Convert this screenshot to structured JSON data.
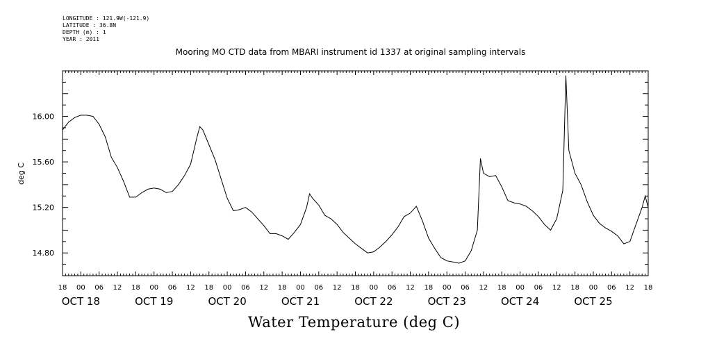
{
  "metadata": {
    "longitude": "LONGITUDE : 121.9W(-121.9)",
    "latitude": "LATITUDE : 36.8N",
    "depth": "DEPTH (m) : 1",
    "year": "YEAR : 2011"
  },
  "chart_data": {
    "type": "line",
    "title": "Mooring MO CTD data from MBARI instrument id 1337 at original sampling intervals",
    "xlabel": "Water Temperature (deg C)",
    "ylabel": "deg C",
    "xlim": [
      "OCT 17 18:00",
      "OCT 25 18:00"
    ],
    "ylim": [
      14.6,
      16.4
    ],
    "y_ticks": [
      "14.80",
      "15.20",
      "15.60",
      "16.00"
    ],
    "x_hour_ticks": [
      "18",
      "00",
      "06",
      "12",
      "18",
      "00",
      "06",
      "12",
      "18",
      "00",
      "06",
      "12",
      "18",
      "00",
      "06",
      "12",
      "18",
      "00",
      "06",
      "12",
      "18",
      "00",
      "06",
      "12",
      "18",
      "00",
      "06",
      "12",
      "18",
      "00",
      "06",
      "12",
      "18"
    ],
    "x_day_labels": [
      {
        "label": "OCT 18",
        "x": "OCT 18 00:00"
      },
      {
        "label": "OCT 19",
        "x": "OCT 19 00:00"
      },
      {
        "label": "OCT 20",
        "x": "OCT 20 00:00"
      },
      {
        "label": "OCT 21",
        "x": "OCT 21 00:00"
      },
      {
        "label": "OCT 22",
        "x": "OCT 22 00:00"
      },
      {
        "label": "OCT 23",
        "x": "OCT 23 00:00"
      },
      {
        "label": "OCT 24",
        "x": "OCT 24 00:00"
      },
      {
        "label": "OCT 25",
        "x": "OCT 25 00:00"
      }
    ],
    "series": [
      {
        "color": "#000000",
        "points": [
          [
            "OCT 17 18:00",
            15.88
          ],
          [
            "OCT 17 20:00",
            15.95
          ],
          [
            "OCT 17 22:00",
            15.99
          ],
          [
            "OCT 18 00:00",
            16.01
          ],
          [
            "OCT 18 02:00",
            16.01
          ],
          [
            "OCT 18 04:00",
            16.0
          ],
          [
            "OCT 18 06:00",
            15.93
          ],
          [
            "OCT 18 08:00",
            15.82
          ],
          [
            "OCT 18 10:00",
            15.64
          ],
          [
            "OCT 18 12:00",
            15.55
          ],
          [
            "OCT 18 14:00",
            15.43
          ],
          [
            "OCT 18 16:00",
            15.29
          ],
          [
            "OCT 18 18:00",
            15.29
          ],
          [
            "OCT 18 20:00",
            15.33
          ],
          [
            "OCT 18 22:00",
            15.36
          ],
          [
            "OCT 19 00:00",
            15.37
          ],
          [
            "OCT 19 02:00",
            15.36
          ],
          [
            "OCT 19 04:00",
            15.33
          ],
          [
            "OCT 19 06:00",
            15.34
          ],
          [
            "OCT 19 08:00",
            15.4
          ],
          [
            "OCT 19 10:00",
            15.48
          ],
          [
            "OCT 19 12:00",
            15.58
          ],
          [
            "OCT 19 14:00",
            15.81
          ],
          [
            "OCT 19 15:00",
            15.91
          ],
          [
            "OCT 19 16:00",
            15.88
          ],
          [
            "OCT 19 18:00",
            15.75
          ],
          [
            "OCT 19 20:00",
            15.62
          ],
          [
            "OCT 19 22:00",
            15.45
          ],
          [
            "OCT 20 00:00",
            15.28
          ],
          [
            "OCT 20 02:00",
            15.17
          ],
          [
            "OCT 20 04:00",
            15.18
          ],
          [
            "OCT 20 06:00",
            15.2
          ],
          [
            "OCT 20 08:00",
            15.16
          ],
          [
            "OCT 20 10:00",
            15.1
          ],
          [
            "OCT 20 12:00",
            15.04
          ],
          [
            "OCT 20 14:00",
            14.97
          ],
          [
            "OCT 20 16:00",
            14.97
          ],
          [
            "OCT 20 18:00",
            14.95
          ],
          [
            "OCT 20 20:00",
            14.92
          ],
          [
            "OCT 20 22:00",
            14.98
          ],
          [
            "OCT 21 00:00",
            15.05
          ],
          [
            "OCT 21 02:00",
            15.2
          ],
          [
            "OCT 21 03:00",
            15.32
          ],
          [
            "OCT 21 04:00",
            15.28
          ],
          [
            "OCT 21 06:00",
            15.22
          ],
          [
            "OCT 21 08:00",
            15.13
          ],
          [
            "OCT 21 10:00",
            15.1
          ],
          [
            "OCT 21 12:00",
            15.05
          ],
          [
            "OCT 21 14:00",
            14.98
          ],
          [
            "OCT 21 16:00",
            14.93
          ],
          [
            "OCT 21 18:00",
            14.88
          ],
          [
            "OCT 21 20:00",
            14.84
          ],
          [
            "OCT 21 22:00",
            14.8
          ],
          [
            "OCT 22 00:00",
            14.81
          ],
          [
            "OCT 22 02:00",
            14.85
          ],
          [
            "OCT 22 04:00",
            14.9
          ],
          [
            "OCT 22 06:00",
            14.96
          ],
          [
            "OCT 22 08:00",
            15.03
          ],
          [
            "OCT 22 10:00",
            15.12
          ],
          [
            "OCT 22 12:00",
            15.15
          ],
          [
            "OCT 22 14:00",
            15.21
          ],
          [
            "OCT 22 16:00",
            15.08
          ],
          [
            "OCT 22 18:00",
            14.93
          ],
          [
            "OCT 22 20:00",
            14.84
          ],
          [
            "OCT 22 22:00",
            14.76
          ],
          [
            "OCT 23 00:00",
            14.73
          ],
          [
            "OCT 23 02:00",
            14.72
          ],
          [
            "OCT 23 04:00",
            14.71
          ],
          [
            "OCT 23 06:00",
            14.73
          ],
          [
            "OCT 23 08:00",
            14.82
          ],
          [
            "OCT 23 10:00",
            15.0
          ],
          [
            "OCT 23 11:00",
            15.63
          ],
          [
            "OCT 23 12:00",
            15.5
          ],
          [
            "OCT 23 14:00",
            15.47
          ],
          [
            "OCT 23 16:00",
            15.48
          ],
          [
            "OCT 23 18:00",
            15.38
          ],
          [
            "OCT 23 20:00",
            15.26
          ],
          [
            "OCT 23 22:00",
            15.24
          ],
          [
            "OCT 24 00:00",
            15.23
          ],
          [
            "OCT 24 02:00",
            15.21
          ],
          [
            "OCT 24 04:00",
            15.17
          ],
          [
            "OCT 24 06:00",
            15.12
          ],
          [
            "OCT 24 08:00",
            15.05
          ],
          [
            "OCT 24 10:00",
            15.0
          ],
          [
            "OCT 24 12:00",
            15.1
          ],
          [
            "OCT 24 14:00",
            15.35
          ],
          [
            "OCT 24 15:00",
            16.36
          ],
          [
            "OCT 24 16:00",
            15.7
          ],
          [
            "OCT 24 18:00",
            15.5
          ],
          [
            "OCT 24 20:00",
            15.4
          ],
          [
            "OCT 24 22:00",
            15.25
          ],
          [
            "OCT 25 00:00",
            15.13
          ],
          [
            "OCT 25 02:00",
            15.06
          ],
          [
            "OCT 25 04:00",
            15.02
          ],
          [
            "OCT 25 06:00",
            14.99
          ],
          [
            "OCT 25 08:00",
            14.95
          ],
          [
            "OCT 25 10:00",
            14.88
          ],
          [
            "OCT 25 12:00",
            14.9
          ],
          [
            "OCT 25 14:00",
            15.05
          ],
          [
            "OCT 25 16:00",
            15.2
          ],
          [
            "OCT 25 17:00",
            15.3
          ],
          [
            "OCT 25 18:00",
            15.2
          ]
        ]
      }
    ]
  }
}
